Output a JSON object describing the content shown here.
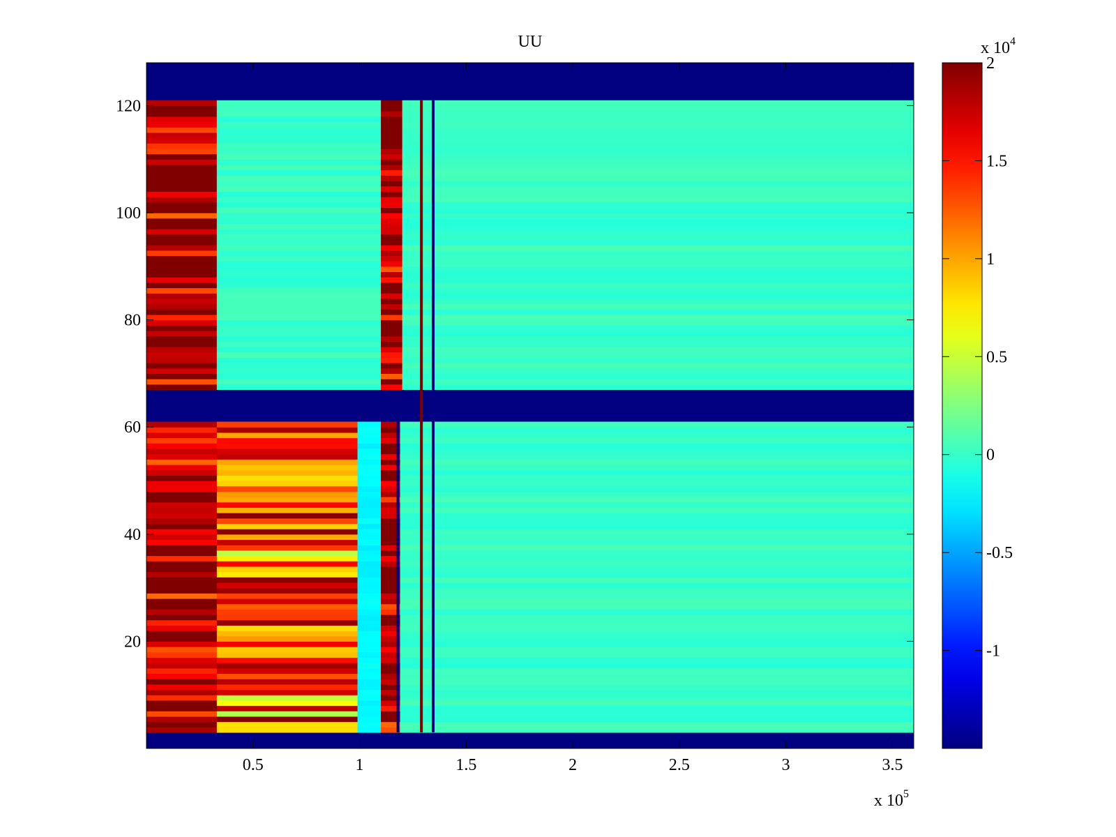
{
  "chart_data": {
    "type": "heatmap",
    "title": "UU",
    "xlabel": "",
    "ylabel": "",
    "x_multiplier": "x 10",
    "x_multiplier_exp": "5",
    "xlim": [
      0,
      3.6
    ],
    "ylim": [
      0,
      128
    ],
    "x_ticks": [
      0.5,
      1,
      1.5,
      2,
      2.5,
      3,
      3.5
    ],
    "x_tick_labels": [
      "0.5",
      "1",
      "1.5",
      "2",
      "2.5",
      "3",
      "3.5"
    ],
    "y_ticks": [
      20,
      40,
      60,
      80,
      100,
      120
    ],
    "y_tick_labels": [
      "20",
      "40",
      "60",
      "80",
      "100",
      "120"
    ],
    "colormap": "jet",
    "colorbar": {
      "multiplier": "x 10",
      "multiplier_exp": "4",
      "range": [
        -1.5,
        2.0
      ],
      "ticks": [
        -1,
        -0.5,
        0,
        0.5,
        1,
        1.5,
        2
      ],
      "tick_labels": [
        "-1",
        "-0.5",
        "0",
        "0.5",
        "1",
        "1.5",
        "2"
      ]
    },
    "background_value": -1.5,
    "masked_row_bands": [
      [
        0,
        3
      ],
      [
        61,
        67
      ],
      [
        121,
        128
      ]
    ],
    "column_regions": [
      {
        "x": [
          0.0,
          0.33
        ],
        "y": [
          67,
          121
        ],
        "level": "high-banded"
      },
      {
        "x": [
          0.33,
          1.1
        ],
        "y": [
          67,
          121
        ],
        "level": 0
      },
      {
        "x": [
          1.1,
          1.2
        ],
        "y": [
          67,
          121
        ],
        "level": "high-banded"
      },
      {
        "x": [
          1.2,
          3.6
        ],
        "y": [
          67,
          121
        ],
        "level": 0
      },
      {
        "x": [
          0.0,
          0.33
        ],
        "y": [
          3,
          61
        ],
        "level": "high-banded"
      },
      {
        "x": [
          0.33,
          0.99
        ],
        "y": [
          3,
          61
        ],
        "level": "mid-banded"
      },
      {
        "x": [
          0.99,
          1.1
        ],
        "y": [
          3,
          61
        ],
        "level": -0.2
      },
      {
        "x": [
          1.1,
          1.19
        ],
        "y": [
          3,
          61
        ],
        "level": "high-banded"
      },
      {
        "x": [
          1.19,
          3.6
        ],
        "y": [
          3,
          61
        ],
        "level": 0
      }
    ],
    "vertical_lines": [
      {
        "x": 1.18,
        "y": [
          3,
          61
        ],
        "value": -1.5
      },
      {
        "x": 1.29,
        "y": [
          3,
          121
        ],
        "value": 2.0
      },
      {
        "x": 1.345,
        "y": [
          3,
          121
        ],
        "value": -1.5
      }
    ]
  }
}
